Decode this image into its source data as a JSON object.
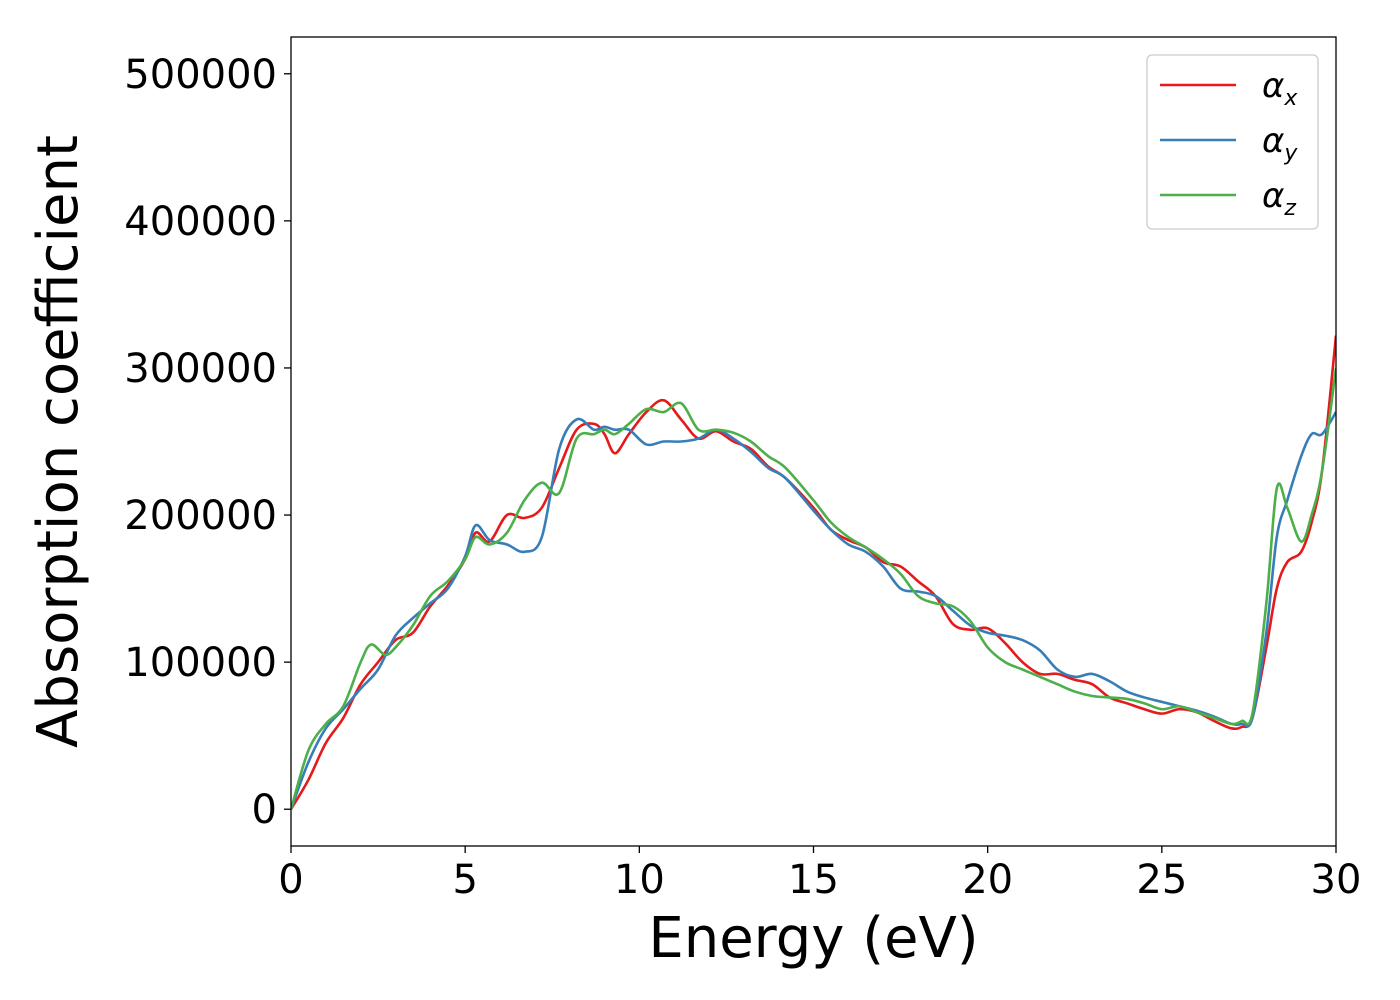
{
  "chart_data": {
    "type": "line",
    "title": "",
    "xlabel": "Energy (eV)",
    "ylabel": "Absorption coefficient",
    "xlim": [
      0,
      30
    ],
    "ylim": [
      -25000,
      525000
    ],
    "xticks": [
      0,
      5,
      10,
      15,
      20,
      25,
      30
    ],
    "yticks": [
      0,
      100000,
      200000,
      300000,
      400000,
      500000
    ],
    "xtick_labels": [
      "0",
      "5",
      "10",
      "15",
      "20",
      "25",
      "30"
    ],
    "ytick_labels": [
      "0",
      "100000",
      "200000",
      "300000",
      "400000",
      "500000"
    ],
    "grid": false,
    "legend_position": "top-right",
    "series": [
      {
        "name": "αx",
        "name_base": "α",
        "name_sub": "x",
        "color": "#e41a1c",
        "x": [
          0,
          0.5,
          1.0,
          1.5,
          2.0,
          2.5,
          3.0,
          3.5,
          4.0,
          4.5,
          5.0,
          5.3,
          5.7,
          6.2,
          6.7,
          7.2,
          7.7,
          8.2,
          8.7,
          9.0,
          9.3,
          9.7,
          10.2,
          10.7,
          11.2,
          11.7,
          12.2,
          12.7,
          13.2,
          13.7,
          14.2,
          15.0,
          15.5,
          16.0,
          16.5,
          17.0,
          17.5,
          18.0,
          18.5,
          19.0,
          19.5,
          20.0,
          20.5,
          21.0,
          21.5,
          22.0,
          22.5,
          23.0,
          23.5,
          24.0,
          24.5,
          25.0,
          25.5,
          26.0,
          26.5,
          27.0,
          27.3,
          27.6,
          28.0,
          28.3,
          28.6,
          29.0,
          29.3,
          29.6,
          30.0
        ],
        "y": [
          0,
          20000,
          45000,
          62000,
          85000,
          100000,
          115000,
          120000,
          138000,
          152000,
          170000,
          188000,
          182000,
          200000,
          198000,
          205000,
          232000,
          258000,
          262000,
          255000,
          242000,
          255000,
          270000,
          278000,
          265000,
          252000,
          257000,
          250000,
          245000,
          233000,
          225000,
          205000,
          190000,
          183000,
          178000,
          168000,
          165000,
          155000,
          145000,
          126000,
          122000,
          123000,
          113000,
          100000,
          92000,
          92000,
          88000,
          85000,
          76000,
          72000,
          68000,
          65000,
          68000,
          66000,
          60000,
          55000,
          56000,
          62000,
          110000,
          150000,
          168000,
          175000,
          195000,
          230000,
          322000
        ]
      },
      {
        "name": "αy",
        "name_base": "α",
        "name_sub": "y",
        "color": "#377eb8",
        "x": [
          0,
          0.5,
          1.0,
          1.5,
          2.0,
          2.5,
          3.0,
          3.5,
          4.0,
          4.5,
          5.0,
          5.3,
          5.7,
          6.2,
          6.7,
          7.2,
          7.7,
          8.2,
          8.7,
          9.0,
          9.3,
          9.7,
          10.2,
          10.7,
          11.2,
          11.7,
          12.2,
          12.7,
          13.2,
          13.7,
          14.2,
          15.0,
          15.5,
          16.0,
          16.5,
          17.0,
          17.5,
          18.0,
          18.5,
          19.0,
          19.5,
          20.0,
          20.5,
          21.0,
          21.5,
          22.0,
          22.5,
          23.0,
          23.5,
          24.0,
          24.5,
          25.0,
          25.5,
          26.0,
          26.5,
          27.0,
          27.3,
          27.6,
          28.0,
          28.3,
          28.6,
          29.0,
          29.3,
          29.6,
          30.0
        ],
        "y": [
          0,
          32000,
          55000,
          68000,
          82000,
          95000,
          118000,
          130000,
          140000,
          150000,
          172000,
          193000,
          183000,
          180000,
          175000,
          185000,
          245000,
          265000,
          258000,
          260000,
          258000,
          258000,
          248000,
          250000,
          250000,
          252000,
          258000,
          252000,
          243000,
          232000,
          225000,
          203000,
          190000,
          180000,
          175000,
          165000,
          150000,
          148000,
          145000,
          135000,
          125000,
          120000,
          118000,
          115000,
          108000,
          95000,
          90000,
          92000,
          87000,
          80000,
          76000,
          73000,
          70000,
          67000,
          63000,
          58000,
          58000,
          62000,
          120000,
          185000,
          210000,
          240000,
          255000,
          255000,
          270000
        ]
      },
      {
        "name": "αz",
        "name_base": "α",
        "name_sub": "z",
        "color": "#4daf4a",
        "x": [
          0,
          0.5,
          1.0,
          1.5,
          2.0,
          2.3,
          2.7,
          3.0,
          3.5,
          4.0,
          4.5,
          5.0,
          5.3,
          5.7,
          6.2,
          6.7,
          7.2,
          7.7,
          8.2,
          8.7,
          9.0,
          9.3,
          9.7,
          10.2,
          10.7,
          11.2,
          11.7,
          12.2,
          12.7,
          13.2,
          13.7,
          14.2,
          15.0,
          15.5,
          16.0,
          16.5,
          17.0,
          17.5,
          18.0,
          18.5,
          19.0,
          19.5,
          20.0,
          20.5,
          21.0,
          21.5,
          22.0,
          22.5,
          23.0,
          23.5,
          24.0,
          24.5,
          25.0,
          25.5,
          26.0,
          26.5,
          27.0,
          27.3,
          27.6,
          28.0,
          28.3,
          28.6,
          29.0,
          29.3,
          29.6,
          30.0
        ],
        "y": [
          0,
          40000,
          58000,
          70000,
          100000,
          112000,
          105000,
          110000,
          125000,
          145000,
          155000,
          170000,
          185000,
          180000,
          188000,
          210000,
          222000,
          215000,
          252000,
          255000,
          258000,
          255000,
          262000,
          272000,
          270000,
          276000,
          258000,
          258000,
          256000,
          250000,
          240000,
          232000,
          210000,
          195000,
          185000,
          178000,
          170000,
          160000,
          145000,
          140000,
          138000,
          128000,
          110000,
          100000,
          95000,
          90000,
          85000,
          80000,
          77000,
          76000,
          75000,
          72000,
          68000,
          70000,
          66000,
          62000,
          58000,
          60000,
          65000,
          140000,
          218000,
          205000,
          182000,
          200000,
          230000,
          300000
        ]
      }
    ]
  }
}
